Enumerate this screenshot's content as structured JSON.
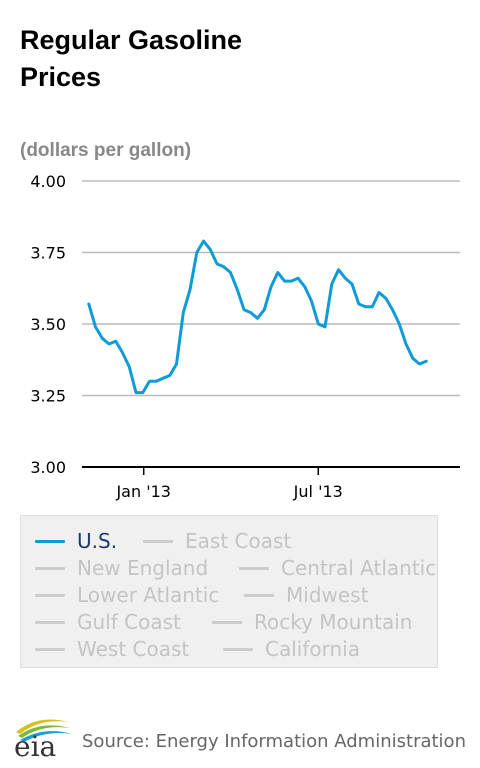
{
  "title_lines": [
    "Regular Gasoline",
    "Prices"
  ],
  "units": "(dollars per gallon)",
  "source": "Source: Energy Information Administration",
  "logo_text": "eia",
  "colors": {
    "us_series": "#0f9bd7",
    "inactive": "#cccccc",
    "grid": "#bbbbbb"
  },
  "legend": {
    "items": [
      {
        "label": "U.S.",
        "active": true
      },
      {
        "label": "East Coast",
        "active": false
      },
      {
        "label": "New England",
        "active": false
      },
      {
        "label": "Central Atlantic",
        "active": false
      },
      {
        "label": "Lower Atlantic",
        "active": false
      },
      {
        "label": "Midwest",
        "active": false
      },
      {
        "label": "Gulf Coast",
        "active": false
      },
      {
        "label": "Rocky Mountain",
        "active": false
      },
      {
        "label": "West Coast",
        "active": false
      },
      {
        "label": "California",
        "active": false
      }
    ]
  },
  "chart_data": {
    "type": "line",
    "title": "Regular Gasoline Prices",
    "ylabel": "(dollars per gallon)",
    "ylim": [
      3.0,
      4.0
    ],
    "yticks": [
      "4.00",
      "3.75",
      "3.50",
      "3.25",
      "3.00"
    ],
    "xlim": [
      "2012-10-29",
      "2013-11-25"
    ],
    "xticks": [
      {
        "label": "Jan '13",
        "date": "2013-01-01"
      },
      {
        "label": "Jul '13",
        "date": "2013-07-01"
      }
    ],
    "grid": true,
    "series": [
      {
        "name": "U.S.",
        "x": [
          "2012-11-05",
          "2012-11-12",
          "2012-11-19",
          "2012-11-26",
          "2012-12-03",
          "2012-12-10",
          "2012-12-17",
          "2012-12-24",
          "2012-12-31",
          "2013-01-07",
          "2013-01-14",
          "2013-01-21",
          "2013-01-28",
          "2013-02-04",
          "2013-02-11",
          "2013-02-18",
          "2013-02-25",
          "2013-03-04",
          "2013-03-11",
          "2013-03-18",
          "2013-03-25",
          "2013-04-01",
          "2013-04-08",
          "2013-04-15",
          "2013-04-22",
          "2013-04-29",
          "2013-05-06",
          "2013-05-13",
          "2013-05-20",
          "2013-05-27",
          "2013-06-03",
          "2013-06-10",
          "2013-06-17",
          "2013-06-24",
          "2013-07-01",
          "2013-07-08",
          "2013-07-15",
          "2013-07-22",
          "2013-07-29",
          "2013-08-05",
          "2013-08-12",
          "2013-08-19",
          "2013-08-26",
          "2013-09-02",
          "2013-09-09",
          "2013-09-16",
          "2013-09-23",
          "2013-09-30",
          "2013-10-07",
          "2013-10-14",
          "2013-10-21"
        ],
        "values": [
          3.57,
          3.49,
          3.45,
          3.43,
          3.44,
          3.4,
          3.35,
          3.26,
          3.26,
          3.3,
          3.3,
          3.31,
          3.32,
          3.36,
          3.54,
          3.62,
          3.75,
          3.79,
          3.76,
          3.71,
          3.7,
          3.68,
          3.62,
          3.55,
          3.54,
          3.52,
          3.55,
          3.63,
          3.68,
          3.65,
          3.65,
          3.66,
          3.63,
          3.58,
          3.5,
          3.49,
          3.64,
          3.69,
          3.66,
          3.64,
          3.57,
          3.56,
          3.56,
          3.61,
          3.59,
          3.55,
          3.5,
          3.43,
          3.38,
          3.36,
          3.37
        ]
      }
    ]
  }
}
